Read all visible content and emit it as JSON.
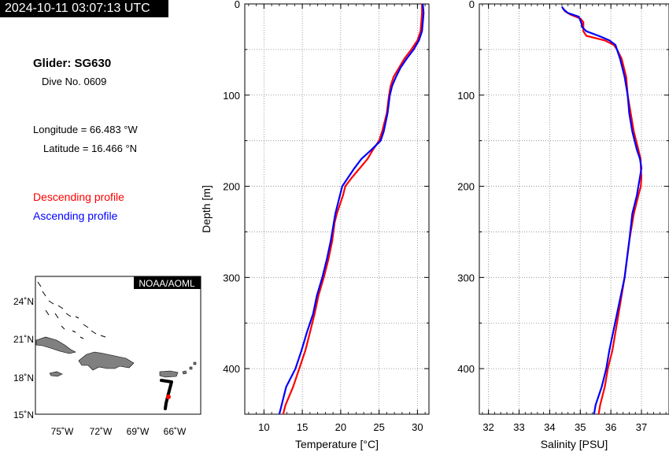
{
  "header": {
    "timestamp": "2024-10-11 03:07:13 UTC",
    "glider": "Glider: SG630",
    "dive": "Dive No. 0609",
    "longitude": "Longitude = 66.483 °W",
    "latitude": "Latitude = 16.466 °N"
  },
  "legend": {
    "descending": "Descending profile",
    "ascending": "Ascending profile",
    "descending_color": "#ff0000",
    "ascending_color": "#0000ff"
  },
  "map": {
    "credit": "NOAA/AOML",
    "lat_labels": [
      "24˚N",
      "21˚N",
      "18˚N",
      "15˚N"
    ],
    "lon_labels": [
      "75˚W",
      "72˚W",
      "69˚W",
      "66˚W"
    ],
    "land_color": "#808080",
    "track_color": "#000000",
    "position_color": "#ff0000"
  },
  "chart_data": [
    {
      "type": "line",
      "xlabel": "Temperature [°C]",
      "ylabel": "Depth [m]",
      "xlim": [
        7.5,
        31.5
      ],
      "ylim": [
        450,
        0
      ],
      "xticks": [
        10,
        15,
        20,
        25,
        30
      ],
      "yticks": [
        0,
        100,
        200,
        300,
        400
      ],
      "grid": true,
      "series": [
        {
          "name": "Descending profile",
          "color": "#ff0000",
          "depth": [
            0,
            10,
            20,
            30,
            40,
            50,
            60,
            70,
            80,
            90,
            100,
            120,
            140,
            150,
            160,
            170,
            180,
            190,
            200,
            210,
            220,
            230,
            240,
            260,
            280,
            300,
            320,
            340,
            360,
            380,
            400,
            420,
            440,
            450
          ],
          "values": [
            30.6,
            30.6,
            30.5,
            30.4,
            30.0,
            29.2,
            28.3,
            27.6,
            26.9,
            26.5,
            26.3,
            26.0,
            25.4,
            25.0,
            24.2,
            23.5,
            22.5,
            21.5,
            20.6,
            20.3,
            19.9,
            19.5,
            19.2,
            18.9,
            18.4,
            17.8,
            17.1,
            16.6,
            16.0,
            15.4,
            14.6,
            13.8,
            12.8,
            12.5
          ]
        },
        {
          "name": "Ascending profile",
          "color": "#0000ff",
          "depth": [
            0,
            10,
            20,
            30,
            40,
            50,
            60,
            70,
            80,
            90,
            100,
            120,
            140,
            150,
            160,
            170,
            180,
            190,
            200,
            210,
            220,
            230,
            240,
            260,
            280,
            300,
            320,
            340,
            360,
            380,
            400,
            410,
            420,
            440,
            450
          ],
          "values": [
            30.7,
            30.8,
            30.7,
            30.6,
            30.2,
            29.5,
            28.6,
            27.8,
            27.2,
            26.7,
            26.4,
            26.1,
            25.6,
            25.2,
            24.0,
            22.7,
            21.8,
            21.0,
            20.2,
            19.9,
            19.6,
            19.3,
            19.1,
            18.7,
            18.2,
            17.6,
            16.9,
            16.4,
            15.6,
            14.9,
            14.1,
            13.5,
            12.9,
            12.3,
            12.0
          ]
        }
      ]
    },
    {
      "type": "line",
      "xlabel": "Salinity [PSU]",
      "ylabel": "",
      "xlim": [
        31.7,
        37.9
      ],
      "ylim": [
        450,
        0
      ],
      "xticks": [
        32,
        33,
        34,
        35,
        36,
        37
      ],
      "yticks": [
        0,
        100,
        200,
        300,
        400
      ],
      "grid": true,
      "series": [
        {
          "name": "Descending profile",
          "color": "#ff0000",
          "depth": [
            5,
            8,
            12,
            16,
            20,
            25,
            30,
            35,
            40,
            45,
            50,
            60,
            80,
            100,
            120,
            140,
            160,
            170,
            180,
            190,
            200,
            210,
            230,
            260,
            300,
            340,
            380,
            400,
            420,
            440,
            450
          ],
          "values": [
            34.45,
            34.5,
            34.7,
            35.0,
            35.1,
            35.1,
            35.1,
            35.2,
            35.8,
            36.1,
            36.2,
            36.35,
            36.5,
            36.55,
            36.65,
            36.75,
            36.9,
            36.97,
            36.98,
            37.0,
            36.98,
            36.9,
            36.75,
            36.6,
            36.45,
            36.25,
            36.05,
            35.9,
            35.8,
            35.65,
            35.6
          ]
        },
        {
          "name": "Ascending profile",
          "color": "#0000ff",
          "depth": [
            3,
            6,
            10,
            14,
            18,
            22,
            25,
            30,
            35,
            40,
            45,
            50,
            60,
            80,
            100,
            120,
            140,
            160,
            170,
            180,
            190,
            200,
            210,
            230,
            260,
            300,
            340,
            380,
            400,
            420,
            440,
            450
          ],
          "values": [
            34.4,
            34.45,
            34.6,
            34.95,
            35.0,
            35.05,
            35.05,
            35.2,
            35.6,
            35.95,
            36.15,
            36.2,
            36.3,
            36.45,
            36.55,
            36.6,
            36.7,
            36.85,
            36.95,
            37.0,
            36.95,
            36.9,
            36.85,
            36.7,
            36.6,
            36.45,
            36.2,
            35.95,
            35.85,
            35.7,
            35.5,
            35.45
          ]
        }
      ]
    }
  ]
}
